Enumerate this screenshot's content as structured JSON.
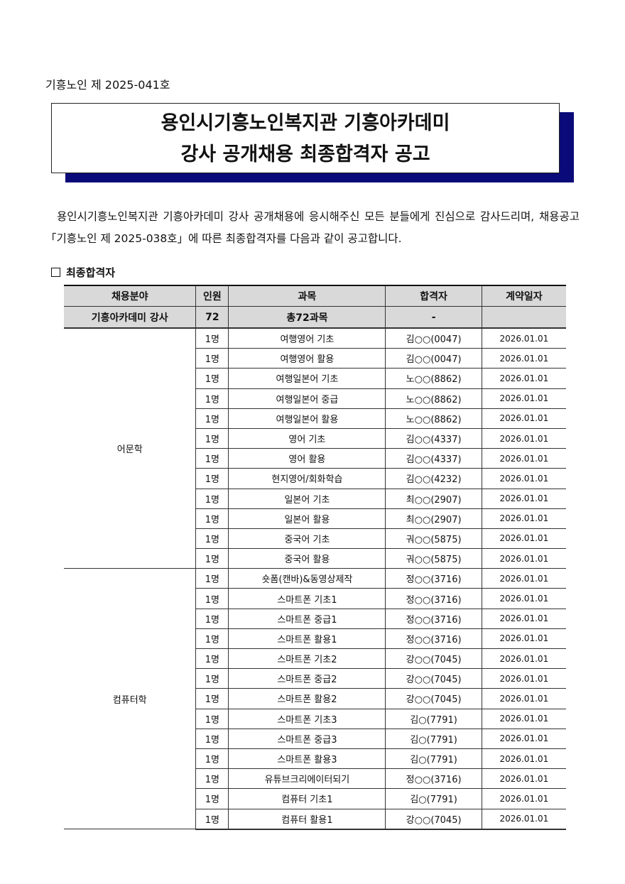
{
  "doc_number": "기흥노인 제  2025-041호",
  "title": {
    "line1": "용인시기흥노인복지관 기흥아카데미",
    "line2": "강사 공개채용 최종합격자 공고"
  },
  "intro": "용인시기흥노인복지관 기흥아카데미 강사 공개채용에 응시해주신 모든 분들에게 진심으로 감사드리며, 채용공고「기흥노인 제 2025-038호」에 따른 최종합격자를 다음과 같이 공고합니다.",
  "section_title": "최종합격자",
  "table": {
    "headers": [
      "채용분야",
      "인원",
      "과목",
      "합격자",
      "계약일자"
    ],
    "total": [
      "기흥아카데미 강사",
      "72",
      "총72과목",
      "-",
      ""
    ],
    "groups": [
      {
        "category": "어문학",
        "rows": [
          [
            "1명",
            "여행영어 기초",
            "김○○(0047)",
            "2026.01.01"
          ],
          [
            "1명",
            "여행영어 활용",
            "김○○(0047)",
            "2026.01.01"
          ],
          [
            "1명",
            "여행일본어 기초",
            "노○○(8862)",
            "2026.01.01"
          ],
          [
            "1명",
            "여행일본어 중급",
            "노○○(8862)",
            "2026.01.01"
          ],
          [
            "1명",
            "여행일본어 활용",
            "노○○(8862)",
            "2026.01.01"
          ],
          [
            "1명",
            "영어 기초",
            "김○○(4337)",
            "2026.01.01"
          ],
          [
            "1명",
            "영어 활용",
            "김○○(4337)",
            "2026.01.01"
          ],
          [
            "1명",
            "현지영어/회화학습",
            "김○○(4232)",
            "2026.01.01"
          ],
          [
            "1명",
            "일본어 기초",
            "최○○(2907)",
            "2026.01.01"
          ],
          [
            "1명",
            "일본어 활용",
            "최○○(2907)",
            "2026.01.01"
          ],
          [
            "1명",
            "중국어 기초",
            "궈○○(5875)",
            "2026.01.01"
          ],
          [
            "1명",
            "중국어 활용",
            "궈○○(5875)",
            "2026.01.01"
          ]
        ]
      },
      {
        "category": "컴퓨터학",
        "rows": [
          [
            "1명",
            "숏폼(캔바)&동영상제작",
            "정○○(3716)",
            "2026.01.01"
          ],
          [
            "1명",
            "스마트폰 기초1",
            "정○○(3716)",
            "2026.01.01"
          ],
          [
            "1명",
            "스마트폰 중급1",
            "정○○(3716)",
            "2026.01.01"
          ],
          [
            "1명",
            "스마트폰 활용1",
            "정○○(3716)",
            "2026.01.01"
          ],
          [
            "1명",
            "스마트폰 기초2",
            "강○○(7045)",
            "2026.01.01"
          ],
          [
            "1명",
            "스마트폰 중급2",
            "강○○(7045)",
            "2026.01.01"
          ],
          [
            "1명",
            "스마트폰 활용2",
            "강○○(7045)",
            "2026.01.01"
          ],
          [
            "1명",
            "스마트폰 기초3",
            "김○(7791)",
            "2026.01.01"
          ],
          [
            "1명",
            "스마트폰 중급3",
            "김○(7791)",
            "2026.01.01"
          ],
          [
            "1명",
            "스마트폰 활용3",
            "김○(7791)",
            "2026.01.01"
          ],
          [
            "1명",
            "유튜브크리에이터되기",
            "정○○(3716)",
            "2026.01.01"
          ],
          [
            "1명",
            "컴퓨터 기초1",
            "김○(7791)",
            "2026.01.01"
          ],
          [
            "1명",
            "컴퓨터 활용1",
            "강○○(7045)",
            "2026.01.01"
          ]
        ]
      }
    ]
  }
}
